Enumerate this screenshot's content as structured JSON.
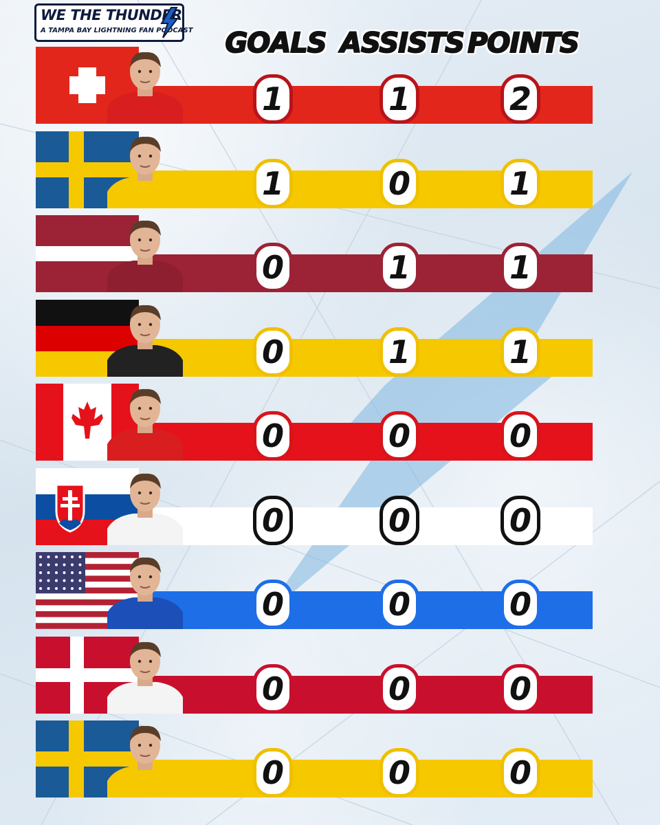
{
  "brand": {
    "title": "WE THE THUNDER",
    "subtitle": "A TAMPA BAY LIGHTNING FAN PODCAST"
  },
  "columns": [
    "GOALS",
    "ASSISTS",
    "POINTS"
  ],
  "rows": [
    {
      "flag": "switzerland",
      "bar_color": "#e3261b",
      "ring_color": "#b8141a",
      "goals": "1",
      "assists": "1",
      "points": "2"
    },
    {
      "flag": "sweden",
      "bar_color": "#f6c800",
      "ring_color": "#f0c000",
      "goals": "1",
      "assists": "0",
      "points": "1"
    },
    {
      "flag": "latvia",
      "bar_color": "#9b2335",
      "ring_color": "#9b2335",
      "goals": "0",
      "assists": "1",
      "points": "1"
    },
    {
      "flag": "germany",
      "bar_color": "#f6c800",
      "ring_color": "#f0c000",
      "goals": "0",
      "assists": "1",
      "points": "1"
    },
    {
      "flag": "canada",
      "bar_color": "#e5121b",
      "ring_color": "#d8141b",
      "goals": "0",
      "assists": "0",
      "points": "0"
    },
    {
      "flag": "slovakia",
      "bar_color": "#ffffff",
      "ring_color": "#ffffff",
      "goals": "0",
      "assists": "0",
      "points": "0"
    },
    {
      "flag": "usa",
      "bar_color": "#1e6ee8",
      "ring_color": "#1e6ee8",
      "goals": "0",
      "assists": "0",
      "points": "0"
    },
    {
      "flag": "denmark",
      "bar_color": "#c8102e",
      "ring_color": "#c8102e",
      "goals": "0",
      "assists": "0",
      "points": "0"
    },
    {
      "flag": "sweden",
      "bar_color": "#f6c800",
      "ring_color": "#f0c000",
      "goals": "0",
      "assists": "0",
      "points": "0"
    }
  ]
}
